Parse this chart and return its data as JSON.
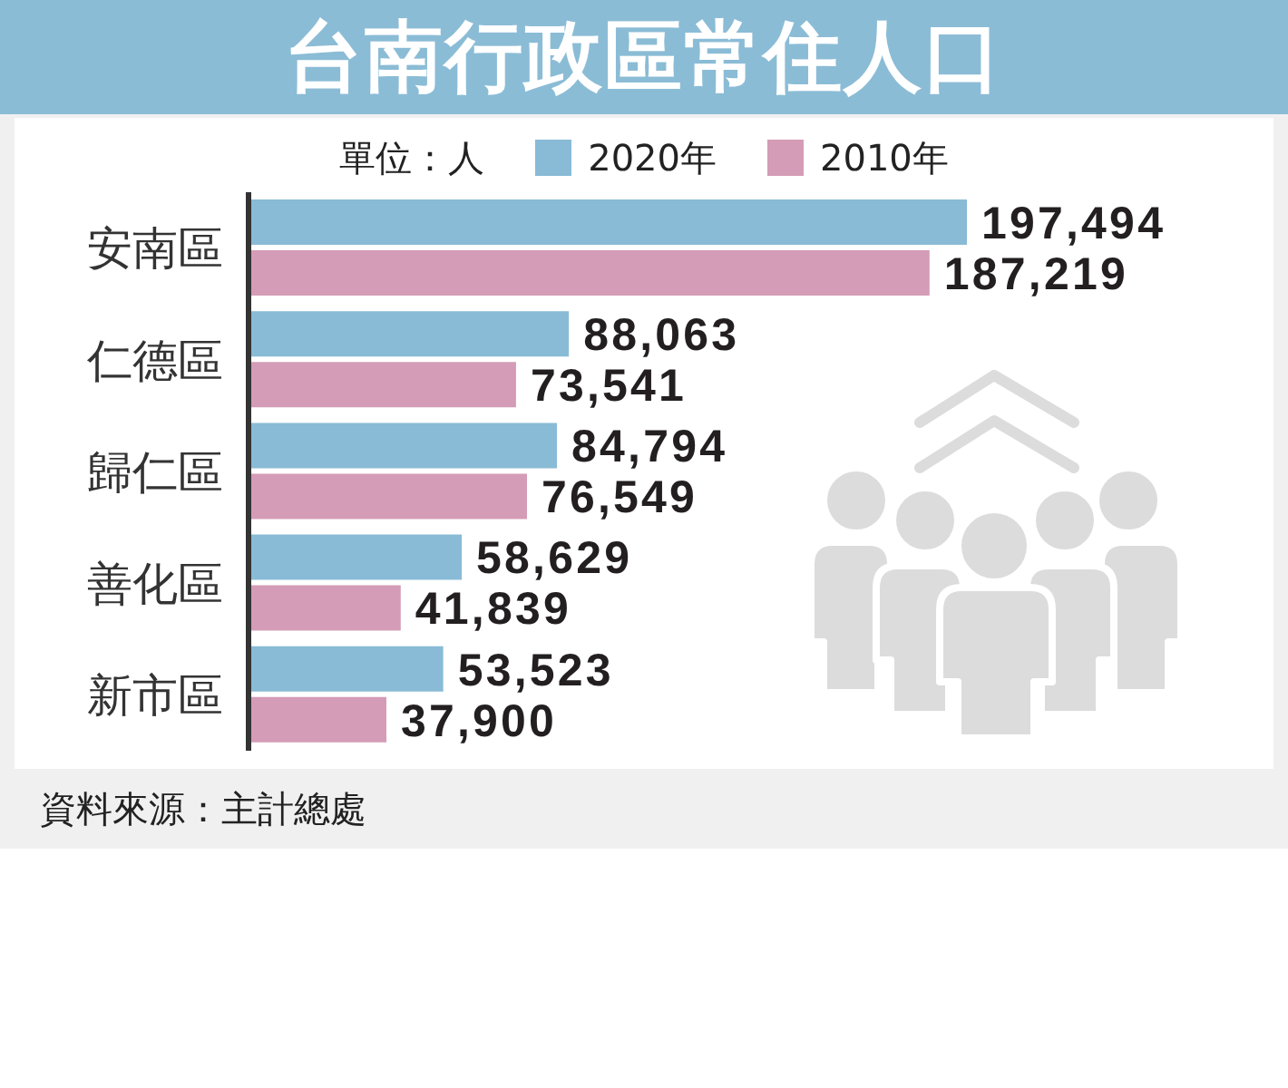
{
  "chart_data": {
    "type": "bar",
    "orientation": "horizontal",
    "title": "台南行政區常住人口",
    "legend_title": "單位：人",
    "categories": [
      "安南區",
      "仁德區",
      "歸仁區",
      "善化區",
      "新市區"
    ],
    "series": [
      {
        "name": "2020年",
        "color": "#89bbd6",
        "values": [
          197494,
          88063,
          84794,
          58629,
          53523
        ],
        "value_labels": [
          "197,494",
          "88,063",
          "84,794",
          "58,629",
          "53,523"
        ]
      },
      {
        "name": "2010年",
        "color": "#d49cb6",
        "values": [
          187219,
          73541,
          76549,
          41839,
          37900
        ],
        "value_labels": [
          "187,219",
          "73,541",
          "76,549",
          "41,839",
          "37,900"
        ]
      }
    ],
    "legend": "top",
    "tick_labels": "y",
    "annotations": [
      "資料來源：主計總處"
    ]
  }
}
